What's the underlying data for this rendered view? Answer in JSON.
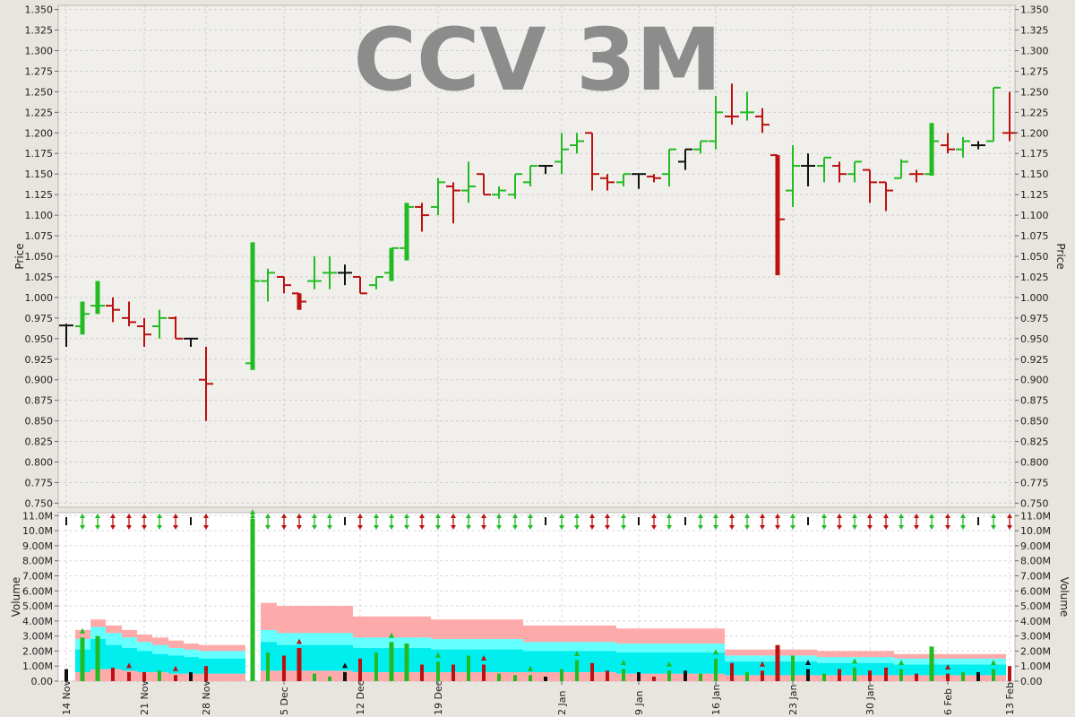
{
  "chart_data": {
    "type": "ohlc",
    "title": "CCV 3M",
    "price_axis": {
      "label": "Price",
      "range": [
        0.745,
        1.355
      ],
      "ticks": [
        "0.750",
        "0.775",
        "0.800",
        "0.825",
        "0.850",
        "0.875",
        "0.900",
        "0.925",
        "0.950",
        "0.975",
        "1.000",
        "1.025",
        "1.050",
        "1.075",
        "1.100",
        "1.125",
        "1.150",
        "1.175",
        "1.200",
        "1.225",
        "1.250",
        "1.275",
        "1.300",
        "1.325",
        "1.350"
      ]
    },
    "volume_axis": {
      "label": "Volume",
      "range": [
        0,
        11.2
      ],
      "ticks": [
        "0.00",
        "1.00M",
        "2.00M",
        "3.00M",
        "4.00M",
        "5.00M",
        "6.00M",
        "7.00M",
        "8.00M",
        "9.00M",
        "10.0M",
        "11.0M"
      ]
    },
    "x_labels": [
      "14 Nov",
      "21 Nov",
      "28 Nov",
      "5 Dec",
      "12 Dec",
      "19 Dec",
      "2 Jan",
      "9 Jan",
      "16 Jan",
      "23 Jan",
      "30 Jan",
      "6 Feb",
      "13 Feb"
    ],
    "grid": true,
    "colors": {
      "up": "#22bb22",
      "down": "#bb1111",
      "flat": "#111111",
      "band_outer": "#ffaaaa",
      "band_mid": "#66ffff",
      "band_inner": "#00eeee"
    },
    "bars": [
      {
        "date": "14 Nov",
        "o": 0.966,
        "h": 0.968,
        "l": 0.94,
        "c": 0.966,
        "v": 0.8,
        "d": "flat"
      },
      {
        "date": "15 Nov",
        "o": 0.965,
        "h": 0.995,
        "l": 0.955,
        "c": 0.98,
        "v": 2.9,
        "d": "up"
      },
      {
        "date": "16 Nov",
        "o": 0.99,
        "h": 1.02,
        "l": 0.98,
        "c": 0.99,
        "v": 3.0,
        "d": "up"
      },
      {
        "date": "17 Nov",
        "o": 0.99,
        "h": 1.0,
        "l": 0.97,
        "c": 0.985,
        "v": 0.9,
        "d": "down"
      },
      {
        "date": "18 Nov",
        "o": 0.975,
        "h": 0.995,
        "l": 0.965,
        "c": 0.97,
        "v": 0.6,
        "d": "down"
      },
      {
        "date": "21 Nov",
        "o": 0.965,
        "h": 0.975,
        "l": 0.94,
        "c": 0.955,
        "v": 0.6,
        "d": "down"
      },
      {
        "date": "22 Nov",
        "o": 0.965,
        "h": 0.985,
        "l": 0.95,
        "c": 0.975,
        "v": 0.7,
        "d": "up"
      },
      {
        "date": "23 Nov",
        "o": 0.975,
        "h": 0.977,
        "l": 0.95,
        "c": 0.95,
        "v": 0.4,
        "d": "down"
      },
      {
        "date": "24 Nov",
        "o": 0.95,
        "h": 0.95,
        "l": 0.94,
        "c": 0.95,
        "v": 0.6,
        "d": "flat"
      },
      {
        "date": "25 Nov",
        "o": 0.9,
        "h": 0.94,
        "l": 0.85,
        "c": 0.895,
        "v": 1.0,
        "d": "down"
      },
      {
        "date": "1 Dec",
        "o": 0.92,
        "h": 1.067,
        "l": 0.912,
        "c": 1.02,
        "v": 10.8,
        "d": "up"
      },
      {
        "date": "2 Dec",
        "o": 1.02,
        "h": 1.035,
        "l": 0.995,
        "c": 1.03,
        "v": 1.9,
        "d": "up"
      },
      {
        "date": "5 Dec",
        "o": 1.025,
        "h": 1.025,
        "l": 1.005,
        "c": 1.015,
        "v": 1.7,
        "d": "down"
      },
      {
        "date": "6 Dec",
        "o": 1.005,
        "h": 1.005,
        "l": 0.985,
        "c": 0.995,
        "v": 2.2,
        "d": "down"
      },
      {
        "date": "7 Dec",
        "o": 1.02,
        "h": 1.05,
        "l": 1.01,
        "c": 1.02,
        "v": 0.5,
        "d": "up"
      },
      {
        "date": "8 Dec",
        "o": 1.03,
        "h": 1.05,
        "l": 1.01,
        "c": 1.03,
        "v": 0.3,
        "d": "up"
      },
      {
        "date": "9 Dec",
        "o": 1.03,
        "h": 1.04,
        "l": 1.015,
        "c": 1.03,
        "v": 0.6,
        "d": "flat"
      },
      {
        "date": "12 Dec",
        "o": 1.025,
        "h": 1.025,
        "l": 1.005,
        "c": 1.005,
        "v": 1.5,
        "d": "down"
      },
      {
        "date": "13 Dec",
        "o": 1.015,
        "h": 1.025,
        "l": 1.01,
        "c": 1.025,
        "v": 1.9,
        "d": "up"
      },
      {
        "date": "14 Dec",
        "o": 1.03,
        "h": 1.06,
        "l": 1.02,
        "c": 1.06,
        "v": 2.6,
        "d": "up"
      },
      {
        "date": "15 Dec",
        "o": 1.06,
        "h": 1.115,
        "l": 1.045,
        "c": 1.11,
        "v": 2.5,
        "d": "up"
      },
      {
        "date": "16 Dec",
        "o": 1.11,
        "h": 1.115,
        "l": 1.08,
        "c": 1.1,
        "v": 1.1,
        "d": "down"
      },
      {
        "date": "19 Dec",
        "o": 1.11,
        "h": 1.145,
        "l": 1.1,
        "c": 1.14,
        "v": 1.3,
        "d": "up"
      },
      {
        "date": "20 Dec",
        "o": 1.135,
        "h": 1.14,
        "l": 1.09,
        "c": 1.13,
        "v": 1.1,
        "d": "down"
      },
      {
        "date": "21 Dec",
        "o": 1.13,
        "h": 1.165,
        "l": 1.115,
        "c": 1.135,
        "v": 1.7,
        "d": "up"
      },
      {
        "date": "22 Dec",
        "o": 1.15,
        "h": 1.15,
        "l": 1.125,
        "c": 1.125,
        "v": 1.1,
        "d": "down"
      },
      {
        "date": "23 Dec",
        "o": 1.125,
        "h": 1.135,
        "l": 1.12,
        "c": 1.13,
        "v": 0.5,
        "d": "up"
      },
      {
        "date": "27 Dec",
        "o": 1.125,
        "h": 1.15,
        "l": 1.12,
        "c": 1.15,
        "v": 0.4,
        "d": "up"
      },
      {
        "date": "28 Dec",
        "o": 1.14,
        "h": 1.16,
        "l": 1.135,
        "c": 1.16,
        "v": 0.4,
        "d": "up"
      },
      {
        "date": "29 Dec",
        "o": 1.16,
        "h": 1.16,
        "l": 1.15,
        "c": 1.16,
        "v": 0.3,
        "d": "flat"
      },
      {
        "date": "2 Jan",
        "o": 1.165,
        "h": 1.2,
        "l": 1.15,
        "c": 1.18,
        "v": 0.8,
        "d": "up"
      },
      {
        "date": "3 Jan",
        "o": 1.185,
        "h": 1.2,
        "l": 1.175,
        "c": 1.19,
        "v": 1.4,
        "d": "up"
      },
      {
        "date": "4 Jan",
        "o": 1.2,
        "h": 1.2,
        "l": 1.13,
        "c": 1.15,
        "v": 1.2,
        "d": "down"
      },
      {
        "date": "5 Jan",
        "o": 1.145,
        "h": 1.15,
        "l": 1.13,
        "c": 1.14,
        "v": 0.7,
        "d": "down"
      },
      {
        "date": "6 Jan",
        "o": 1.14,
        "h": 1.15,
        "l": 1.135,
        "c": 1.15,
        "v": 0.8,
        "d": "up"
      },
      {
        "date": "9 Jan",
        "o": 1.15,
        "h": 1.15,
        "l": 1.132,
        "c": 1.15,
        "v": 0.6,
        "d": "flat"
      },
      {
        "date": "10 Jan",
        "o": 1.147,
        "h": 1.15,
        "l": 1.14,
        "c": 1.145,
        "v": 0.3,
        "d": "down"
      },
      {
        "date": "11 Jan",
        "o": 1.15,
        "h": 1.18,
        "l": 1.135,
        "c": 1.18,
        "v": 0.7,
        "d": "up"
      },
      {
        "date": "12 Jan",
        "o": 1.165,
        "h": 1.18,
        "l": 1.155,
        "c": 1.18,
        "v": 0.7,
        "d": "flat"
      },
      {
        "date": "13 Jan",
        "o": 1.18,
        "h": 1.19,
        "l": 1.175,
        "c": 1.19,
        "v": 0.5,
        "d": "up"
      },
      {
        "date": "16 Jan",
        "o": 1.19,
        "h": 1.245,
        "l": 1.18,
        "c": 1.225,
        "v": 1.5,
        "d": "up"
      },
      {
        "date": "17 Jan",
        "o": 1.22,
        "h": 1.26,
        "l": 1.21,
        "c": 1.22,
        "v": 1.2,
        "d": "down"
      },
      {
        "date": "18 Jan",
        "o": 1.225,
        "h": 1.25,
        "l": 1.215,
        "c": 1.225,
        "v": 0.6,
        "d": "up"
      },
      {
        "date": "19 Jan",
        "o": 1.22,
        "h": 1.23,
        "l": 1.2,
        "c": 1.21,
        "v": 0.7,
        "d": "down"
      },
      {
        "date": "20 Jan",
        "o": 1.173,
        "h": 1.173,
        "l": 1.027,
        "c": 1.095,
        "v": 2.4,
        "d": "down"
      },
      {
        "date": "23 Jan",
        "o": 1.13,
        "h": 1.185,
        "l": 1.11,
        "c": 1.16,
        "v": 1.7,
        "d": "up"
      },
      {
        "date": "24 Jan",
        "o": 1.16,
        "h": 1.175,
        "l": 1.135,
        "c": 1.16,
        "v": 0.8,
        "d": "flat"
      },
      {
        "date": "25 Jan",
        "o": 1.16,
        "h": 1.17,
        "l": 1.14,
        "c": 1.17,
        "v": 0.5,
        "d": "up"
      },
      {
        "date": "26 Jan",
        "o": 1.16,
        "h": 1.165,
        "l": 1.14,
        "c": 1.15,
        "v": 0.8,
        "d": "down"
      },
      {
        "date": "27 Jan",
        "o": 1.15,
        "h": 1.165,
        "l": 1.14,
        "c": 1.165,
        "v": 0.9,
        "d": "up"
      },
      {
        "date": "30 Jan",
        "o": 1.155,
        "h": 1.155,
        "l": 1.115,
        "c": 1.14,
        "v": 0.7,
        "d": "down"
      },
      {
        "date": "31 Jan",
        "o": 1.14,
        "h": 1.14,
        "l": 1.105,
        "c": 1.13,
        "v": 0.9,
        "d": "down"
      },
      {
        "date": "1 Feb",
        "o": 1.145,
        "h": 1.168,
        "l": 1.145,
        "c": 1.165,
        "v": 0.8,
        "d": "up"
      },
      {
        "date": "2 Feb",
        "o": 1.15,
        "h": 1.155,
        "l": 1.14,
        "c": 1.15,
        "v": 0.5,
        "d": "down"
      },
      {
        "date": "3 Feb",
        "o": 1.15,
        "h": 1.212,
        "l": 1.148,
        "c": 1.19,
        "v": 2.3,
        "d": "up"
      },
      {
        "date": "6 Feb",
        "o": 1.185,
        "h": 1.2,
        "l": 1.175,
        "c": 1.18,
        "v": 0.5,
        "d": "down"
      },
      {
        "date": "7 Feb",
        "o": 1.18,
        "h": 1.195,
        "l": 1.17,
        "c": 1.19,
        "v": 0.6,
        "d": "up"
      },
      {
        "date": "8 Feb",
        "o": 1.185,
        "h": 1.19,
        "l": 1.18,
        "c": 1.185,
        "v": 0.6,
        "d": "flat"
      },
      {
        "date": "9 Feb",
        "o": 1.19,
        "h": 1.255,
        "l": 1.19,
        "c": 1.255,
        "v": 0.8,
        "d": "up"
      },
      {
        "date": "10 Feb",
        "o": 1.2,
        "h": 1.25,
        "l": 1.19,
        "c": 1.2,
        "v": 1.0,
        "d": "down"
      }
    ],
    "band_segments": [
      {
        "from": 1,
        "to": 2,
        "outer": 3.4,
        "mid": 2.8,
        "inner": 2.1,
        "lower": 0.6
      },
      {
        "from": 2,
        "to": 3,
        "outer": 4.1,
        "mid": 3.6,
        "inner": 2.8,
        "lower": 0.8
      },
      {
        "from": 3,
        "to": 4,
        "outer": 3.7,
        "mid": 3.2,
        "inner": 2.4,
        "lower": 0.8
      },
      {
        "from": 4,
        "to": 5,
        "outer": 3.4,
        "mid": 2.9,
        "inner": 2.2,
        "lower": 0.7
      },
      {
        "from": 5,
        "to": 6,
        "outer": 3.1,
        "mid": 2.6,
        "inner": 2.0,
        "lower": 0.6
      },
      {
        "from": 6,
        "to": 7,
        "outer": 2.9,
        "mid": 2.4,
        "inner": 1.8,
        "lower": 0.6
      },
      {
        "from": 7,
        "to": 8,
        "outer": 2.7,
        "mid": 2.2,
        "inner": 1.7,
        "lower": 0.5
      },
      {
        "from": 8,
        "to": 9,
        "outer": 2.5,
        "mid": 2.1,
        "inner": 1.6,
        "lower": 0.5
      },
      {
        "from": 9,
        "to": 10,
        "outer": 2.4,
        "mid": 2.0,
        "inner": 1.5,
        "lower": 0.5
      },
      {
        "from": 11,
        "to": 12,
        "outer": 5.2,
        "mid": 3.4,
        "inner": 2.6,
        "lower": 0.7
      },
      {
        "from": 12,
        "to": 17,
        "outer": 5.0,
        "mid": 3.2,
        "inner": 2.4,
        "lower": 0.7
      },
      {
        "from": 17,
        "to": 22,
        "outer": 4.3,
        "mid": 2.9,
        "inner": 2.2,
        "lower": 0.6
      },
      {
        "from": 22,
        "to": 28,
        "outer": 4.1,
        "mid": 2.8,
        "inner": 2.1,
        "lower": 0.6
      },
      {
        "from": 28,
        "to": 34,
        "outer": 3.7,
        "mid": 2.6,
        "inner": 2.0,
        "lower": 0.6
      },
      {
        "from": 34,
        "to": 41,
        "outer": 3.5,
        "mid": 2.5,
        "inner": 1.9,
        "lower": 0.5
      },
      {
        "from": 41,
        "to": 47,
        "outer": 2.1,
        "mid": 1.7,
        "inner": 1.3,
        "lower": 0.4
      },
      {
        "from": 47,
        "to": 52,
        "outer": 2.0,
        "mid": 1.6,
        "inner": 1.2,
        "lower": 0.4
      },
      {
        "from": 52,
        "to": 61,
        "outer": 1.8,
        "mid": 1.5,
        "inner": 1.1,
        "lower": 0.4
      }
    ]
  }
}
